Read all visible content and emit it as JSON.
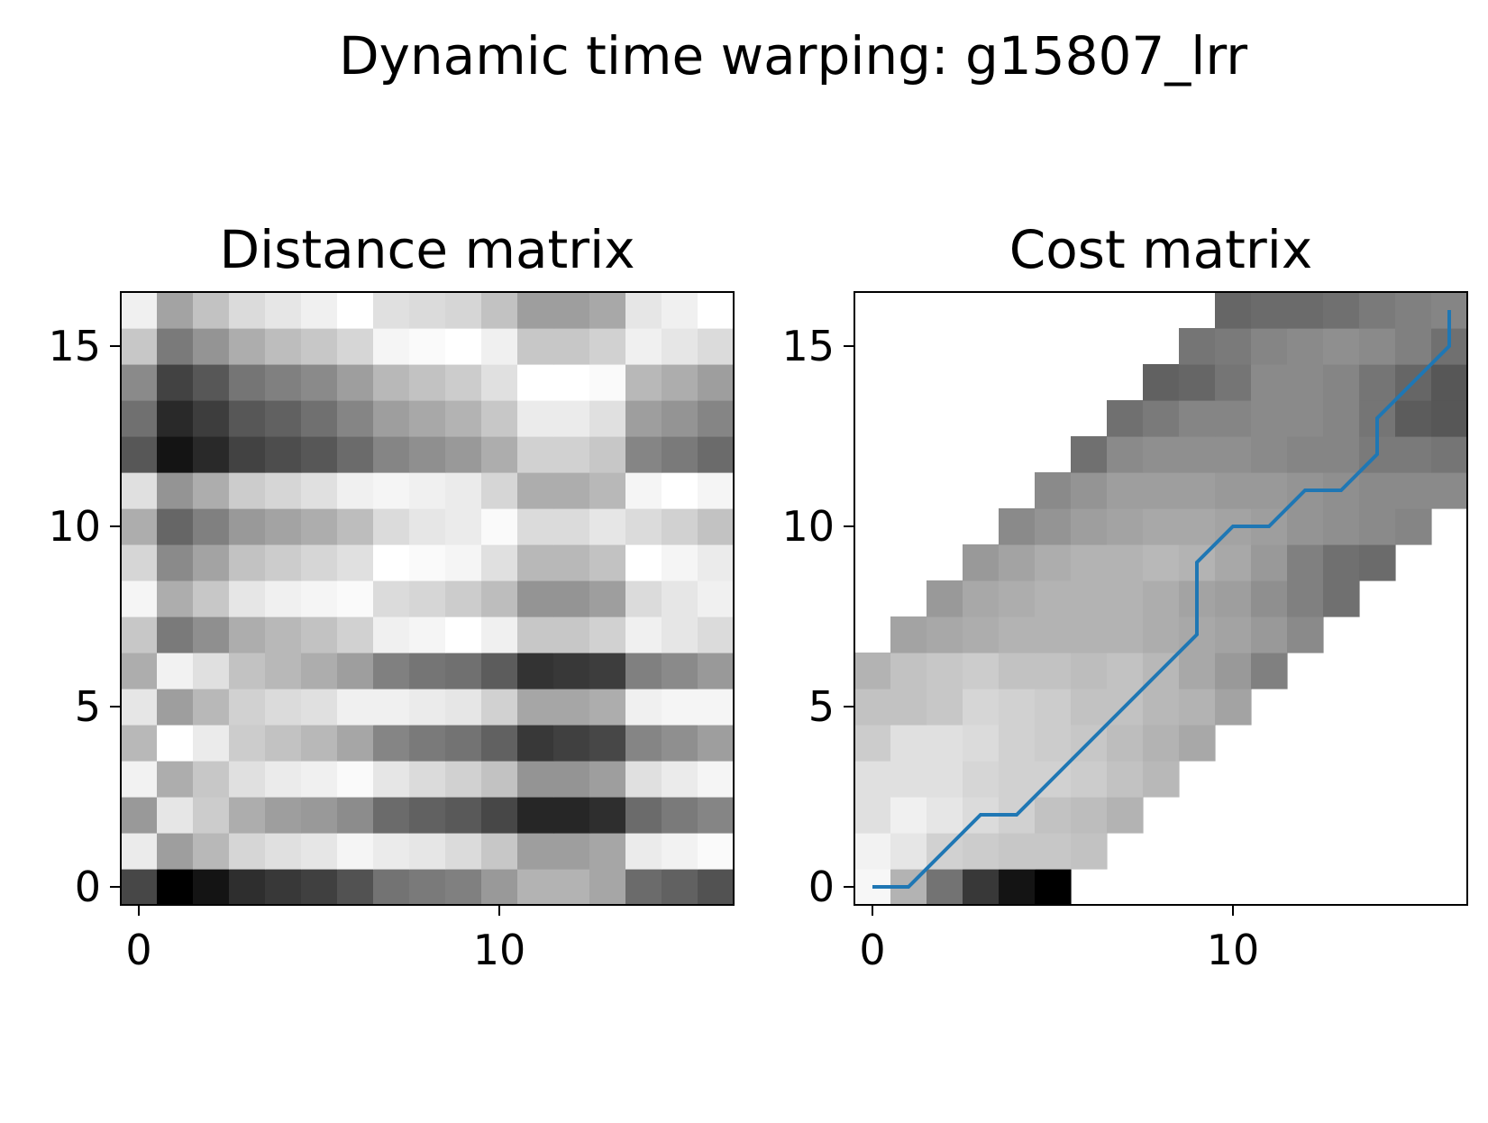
{
  "figure": {
    "title": "Dynamic time warping: g15807_lrr"
  },
  "chart_data": [
    {
      "type": "heatmap",
      "title": "Distance matrix",
      "xlabel": "",
      "ylabel": "",
      "colormap": "gray_r",
      "n_cols": 17,
      "n_rows": 17,
      "xlim": [
        -0.5,
        16.5
      ],
      "ylim": [
        -0.5,
        16.5
      ],
      "xticks": [
        0,
        10
      ],
      "yticks": [
        0,
        5,
        10,
        15
      ],
      "grid": false,
      "value_range": [
        0,
        1
      ],
      "values": [
        [
          0.72,
          1.0,
          0.92,
          0.82,
          0.78,
          0.75,
          0.68,
          0.55,
          0.52,
          0.5,
          0.4,
          0.3,
          0.3,
          0.35,
          0.58,
          0.62,
          0.68
        ],
        [
          0.08,
          0.38,
          0.28,
          0.16,
          0.12,
          0.1,
          0.04,
          0.08,
          0.1,
          0.14,
          0.22,
          0.38,
          0.38,
          0.35,
          0.08,
          0.05,
          0.02
        ],
        [
          0.4,
          0.1,
          0.2,
          0.32,
          0.38,
          0.4,
          0.45,
          0.58,
          0.62,
          0.65,
          0.72,
          0.85,
          0.85,
          0.82,
          0.58,
          0.52,
          0.48
        ],
        [
          0.05,
          0.32,
          0.22,
          0.12,
          0.08,
          0.06,
          0.02,
          0.1,
          0.14,
          0.18,
          0.24,
          0.42,
          0.42,
          0.38,
          0.12,
          0.08,
          0.04
        ],
        [
          0.28,
          0.0,
          0.08,
          0.2,
          0.24,
          0.28,
          0.35,
          0.48,
          0.52,
          0.55,
          0.62,
          0.78,
          0.75,
          0.72,
          0.48,
          0.44,
          0.38
        ],
        [
          0.1,
          0.38,
          0.28,
          0.18,
          0.14,
          0.12,
          0.06,
          0.06,
          0.08,
          0.1,
          0.18,
          0.35,
          0.35,
          0.32,
          0.06,
          0.04,
          0.04
        ],
        [
          0.32,
          0.05,
          0.12,
          0.24,
          0.28,
          0.32,
          0.38,
          0.5,
          0.54,
          0.56,
          0.64,
          0.8,
          0.78,
          0.76,
          0.5,
          0.46,
          0.4
        ],
        [
          0.22,
          0.52,
          0.44,
          0.32,
          0.28,
          0.24,
          0.18,
          0.06,
          0.04,
          0.0,
          0.06,
          0.22,
          0.22,
          0.18,
          0.06,
          0.1,
          0.14
        ],
        [
          0.04,
          0.32,
          0.22,
          0.1,
          0.06,
          0.04,
          0.02,
          0.14,
          0.16,
          0.2,
          0.26,
          0.42,
          0.42,
          0.38,
          0.14,
          0.1,
          0.06
        ],
        [
          0.16,
          0.46,
          0.36,
          0.24,
          0.2,
          0.16,
          0.12,
          0.0,
          0.02,
          0.04,
          0.12,
          0.28,
          0.28,
          0.24,
          0.0,
          0.04,
          0.08
        ],
        [
          0.32,
          0.6,
          0.5,
          0.4,
          0.36,
          0.32,
          0.26,
          0.14,
          0.1,
          0.08,
          0.02,
          0.14,
          0.14,
          0.1,
          0.14,
          0.18,
          0.24
        ],
        [
          0.12,
          0.42,
          0.32,
          0.2,
          0.16,
          0.12,
          0.06,
          0.04,
          0.06,
          0.08,
          0.16,
          0.32,
          0.32,
          0.28,
          0.04,
          0.0,
          0.04
        ],
        [
          0.66,
          0.92,
          0.84,
          0.74,
          0.7,
          0.66,
          0.58,
          0.48,
          0.44,
          0.4,
          0.32,
          0.18,
          0.18,
          0.22,
          0.48,
          0.52,
          0.58
        ],
        [
          0.56,
          0.84,
          0.76,
          0.66,
          0.62,
          0.56,
          0.48,
          0.38,
          0.34,
          0.3,
          0.22,
          0.08,
          0.08,
          0.12,
          0.38,
          0.42,
          0.48
        ],
        [
          0.46,
          0.74,
          0.66,
          0.54,
          0.5,
          0.46,
          0.38,
          0.28,
          0.24,
          0.2,
          0.12,
          0.0,
          0.0,
          0.02,
          0.28,
          0.32,
          0.38
        ],
        [
          0.22,
          0.52,
          0.42,
          0.32,
          0.26,
          0.22,
          0.16,
          0.04,
          0.02,
          0.0,
          0.06,
          0.22,
          0.22,
          0.18,
          0.06,
          0.1,
          0.14
        ],
        [
          0.06,
          0.36,
          0.24,
          0.14,
          0.1,
          0.06,
          0.0,
          0.12,
          0.14,
          0.16,
          0.24,
          0.38,
          0.38,
          0.34,
          0.1,
          0.06,
          0.0
        ]
      ]
    },
    {
      "type": "heatmap",
      "title": "Cost matrix",
      "xlabel": "",
      "ylabel": "",
      "colormap": "gray_r",
      "n_cols": 17,
      "n_rows": 17,
      "xlim": [
        -0.5,
        16.5
      ],
      "ylim": [
        -0.5,
        16.5
      ],
      "xticks": [
        0,
        10
      ],
      "yticks": [
        0,
        5,
        10,
        15
      ],
      "grid": false,
      "value_range": [
        0,
        1
      ],
      "band_note": "cells outside the band are blank",
      "values": [
        [
          0.03,
          0.3,
          0.55,
          0.78,
          0.92,
          1.0,
          null,
          null,
          null,
          null,
          null,
          null,
          null,
          null,
          null,
          null,
          null
        ],
        [
          0.05,
          0.1,
          0.18,
          0.2,
          0.22,
          0.22,
          0.24,
          null,
          null,
          null,
          null,
          null,
          null,
          null,
          null,
          null,
          null
        ],
        [
          0.12,
          0.06,
          0.1,
          0.14,
          0.18,
          0.24,
          0.26,
          0.3,
          null,
          null,
          null,
          null,
          null,
          null,
          null,
          null,
          null
        ],
        [
          0.12,
          0.12,
          0.12,
          0.16,
          0.18,
          0.18,
          0.2,
          0.24,
          0.28,
          null,
          null,
          null,
          null,
          null,
          null,
          null,
          null
        ],
        [
          0.2,
          0.12,
          0.12,
          0.14,
          0.18,
          0.2,
          0.22,
          0.26,
          0.3,
          0.34,
          null,
          null,
          null,
          null,
          null,
          null,
          null
        ],
        [
          0.24,
          0.24,
          0.22,
          0.16,
          0.18,
          0.2,
          0.24,
          0.24,
          0.28,
          0.3,
          0.36,
          null,
          null,
          null,
          null,
          null,
          null
        ],
        [
          0.3,
          0.24,
          0.22,
          0.2,
          0.24,
          0.24,
          0.26,
          0.24,
          0.28,
          0.34,
          0.4,
          0.5,
          null,
          null,
          null,
          null,
          null
        ],
        [
          null,
          0.36,
          0.34,
          0.32,
          0.3,
          0.3,
          0.3,
          0.3,
          0.32,
          0.34,
          0.36,
          0.4,
          0.46,
          null,
          null,
          null,
          null
        ],
        [
          null,
          null,
          0.4,
          0.34,
          0.32,
          0.3,
          0.3,
          0.3,
          0.32,
          0.36,
          0.38,
          0.44,
          0.5,
          0.56,
          null,
          null,
          null
        ],
        [
          null,
          null,
          null,
          0.4,
          0.36,
          0.32,
          0.3,
          0.3,
          0.28,
          0.3,
          0.34,
          0.4,
          0.5,
          0.56,
          0.58,
          null,
          null
        ],
        [
          null,
          null,
          null,
          null,
          0.46,
          0.42,
          0.38,
          0.36,
          0.34,
          0.34,
          0.36,
          0.38,
          0.42,
          0.44,
          0.46,
          0.48,
          null
        ],
        [
          null,
          null,
          null,
          null,
          null,
          0.46,
          0.42,
          0.38,
          0.38,
          0.38,
          0.4,
          0.4,
          0.42,
          0.44,
          0.46,
          0.46,
          0.46
        ],
        [
          null,
          null,
          null,
          null,
          null,
          null,
          0.56,
          0.46,
          0.44,
          0.44,
          0.44,
          0.46,
          0.48,
          0.48,
          0.52,
          0.52,
          0.54
        ],
        [
          null,
          null,
          null,
          null,
          null,
          null,
          null,
          0.56,
          0.52,
          0.48,
          0.48,
          0.46,
          0.46,
          0.48,
          0.54,
          0.64,
          0.66
        ],
        [
          null,
          null,
          null,
          null,
          null,
          null,
          null,
          null,
          0.62,
          0.6,
          0.54,
          0.46,
          0.46,
          0.48,
          0.54,
          0.6,
          0.66
        ],
        [
          null,
          null,
          null,
          null,
          null,
          null,
          null,
          null,
          null,
          0.54,
          0.52,
          0.48,
          0.46,
          0.44,
          0.46,
          0.5,
          0.56
        ],
        [
          null,
          null,
          null,
          null,
          null,
          null,
          null,
          null,
          null,
          null,
          0.6,
          0.58,
          0.58,
          0.56,
          0.52,
          0.5,
          0.48
        ]
      ],
      "path": {
        "color": "#1f77b4",
        "x": [
          0,
          1,
          2,
          3,
          4,
          5,
          6,
          7,
          8,
          9,
          9,
          9,
          10,
          11,
          12,
          13,
          14,
          14,
          15,
          16,
          16
        ],
        "y": [
          0,
          0,
          1,
          2,
          2,
          3,
          4,
          5,
          6,
          7,
          8,
          9,
          10,
          10,
          11,
          11,
          12,
          13,
          14,
          15,
          16
        ]
      }
    }
  ]
}
